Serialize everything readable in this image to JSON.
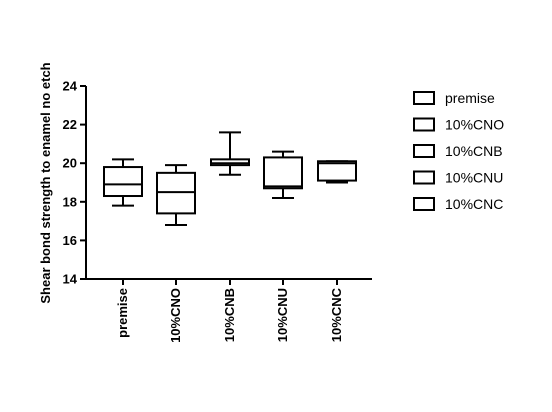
{
  "chart_data": {
    "type": "box",
    "title": "",
    "xlabel": "",
    "ylabel": "Shear bond strength to enamel no etch",
    "ylim": [
      14,
      24
    ],
    "yticks": [
      14,
      16,
      18,
      20,
      22,
      24
    ],
    "grid": false,
    "legend_position": "right",
    "categories": [
      "premise",
      "10%CNO",
      "10%CNB",
      "10%CNU",
      "10%CNC"
    ],
    "series": [
      {
        "name": "premise",
        "min": 17.8,
        "q1": 18.3,
        "median": 18.9,
        "q3": 19.8,
        "max": 20.2
      },
      {
        "name": "10%CNO",
        "min": 16.8,
        "q1": 17.4,
        "median": 18.5,
        "q3": 19.5,
        "max": 19.9
      },
      {
        "name": "10%CNB",
        "min": 19.4,
        "q1": 19.9,
        "median": 20.0,
        "q3": 20.2,
        "max": 21.6
      },
      {
        "name": "10%CNU",
        "min": 18.2,
        "q1": 18.7,
        "median": 18.8,
        "q3": 20.3,
        "max": 20.6
      },
      {
        "name": "10%CNC",
        "min": 19.0,
        "q1": 19.1,
        "median": 20.0,
        "q3": 20.1,
        "max": 20.1
      }
    ]
  }
}
